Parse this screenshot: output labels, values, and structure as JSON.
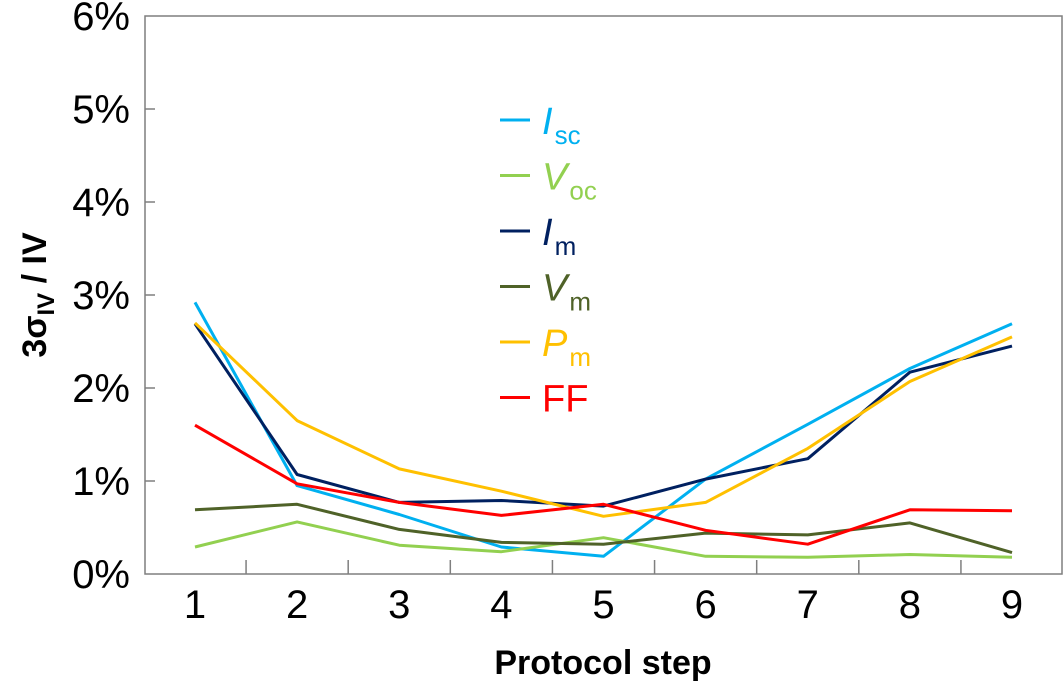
{
  "chart_data": {
    "type": "line",
    "title": "",
    "xlabel": "Protocol step",
    "ylabel": {
      "main": "3σ",
      "sub": "IV",
      "rest": " / IV"
    },
    "x": [
      1,
      2,
      3,
      4,
      5,
      6,
      7,
      8,
      9
    ],
    "x_tick_labels": [
      "1",
      "2",
      "3",
      "4",
      "5",
      "6",
      "7",
      "8",
      "9"
    ],
    "y_tick_labels": [
      "0%",
      "1%",
      "2%",
      "3%",
      "4%",
      "5%",
      "6%"
    ],
    "ylim": [
      0,
      6
    ],
    "y_unit": "%",
    "legend_position": "top-center",
    "series": [
      {
        "name": "I",
        "sub": "sc",
        "italic": true,
        "color": "#00b0f0",
        "values": [
          2.92,
          0.95,
          0.64,
          0.29,
          0.19,
          1.02,
          1.61,
          2.21,
          2.69
        ]
      },
      {
        "name": "V",
        "sub": "oc",
        "italic": true,
        "color": "#92d050",
        "values": [
          0.29,
          0.56,
          0.31,
          0.24,
          0.39,
          0.19,
          0.18,
          0.21,
          0.18
        ]
      },
      {
        "name": "I",
        "sub": "m",
        "italic": true,
        "color": "#002060",
        "values": [
          2.69,
          1.07,
          0.77,
          0.79,
          0.73,
          1.02,
          1.24,
          2.17,
          2.45
        ]
      },
      {
        "name": "V",
        "sub": "m",
        "italic": true,
        "color": "#4f6228",
        "values": [
          0.69,
          0.75,
          0.48,
          0.34,
          0.32,
          0.44,
          0.42,
          0.55,
          0.23
        ]
      },
      {
        "name": "P",
        "sub": "m",
        "italic": true,
        "color": "#ffc000",
        "values": [
          2.7,
          1.65,
          1.13,
          0.89,
          0.62,
          0.77,
          1.35,
          2.07,
          2.55
        ]
      },
      {
        "name": "FF",
        "sub": "",
        "italic": false,
        "color": "#ff0000",
        "values": [
          1.6,
          0.97,
          0.77,
          0.63,
          0.75,
          0.47,
          0.32,
          0.69,
          0.68
        ]
      }
    ]
  }
}
